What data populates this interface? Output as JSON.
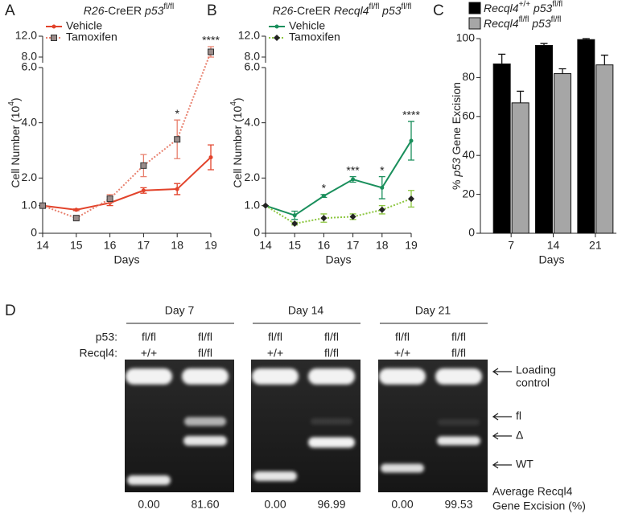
{
  "chart_data": [
    {
      "type": "line",
      "panel": "A",
      "title": [
        {
          "text": "R26",
          "style": "italic"
        },
        {
          "text": "-CreER "
        },
        {
          "text": "p53",
          "style": "italic"
        },
        {
          "text": "fl/fl",
          "style": "sup"
        }
      ],
      "x_label": "Days",
      "y_label": [
        {
          "text": "Cell Number (10"
        },
        {
          "text": "4",
          "style": "sup"
        },
        {
          "text": ")"
        }
      ],
      "x": [
        14,
        15,
        16,
        17,
        18,
        19
      ],
      "xlim": [
        14,
        19
      ],
      "xticks": [
        14,
        15,
        16,
        17,
        18,
        19
      ],
      "ylim": [
        0,
        12
      ],
      "y_break": 6,
      "yticks": [
        0,
        {
          "value": 1,
          "label": "1.0"
        },
        {
          "value": 2,
          "label": "2.0"
        },
        {
          "value": 4,
          "label": "4.0"
        },
        {
          "value": 6,
          "label": "6.0"
        },
        {
          "value": 8,
          "label": "8.0"
        },
        {
          "value": 12,
          "label": "12.0"
        }
      ],
      "series": [
        {
          "name": "Vehicle",
          "color": "#e2432b",
          "line_style": "solid",
          "marker": "circle",
          "values": [
            1.0,
            0.85,
            1.1,
            1.55,
            1.6,
            2.75
          ],
          "errors": [
            0,
            0.03,
            0.1,
            0.1,
            0.2,
            0.45
          ]
        },
        {
          "name": "Tamoxifen",
          "color": "#e8806e",
          "line_style": "dotted",
          "marker": "square",
          "values": [
            1.0,
            0.55,
            1.25,
            2.45,
            3.4,
            9.0
          ],
          "errors": [
            0,
            0.05,
            0.15,
            0.4,
            0.7,
            1.0
          ]
        }
      ],
      "annotations": [
        {
          "x": 18,
          "text": "*"
        },
        {
          "x": 19,
          "text": "****"
        }
      ],
      "legend": "upper left"
    },
    {
      "type": "line",
      "panel": "B",
      "title": [
        {
          "text": "R26",
          "style": "italic"
        },
        {
          "text": "-CreER "
        },
        {
          "text": "Recql4",
          "style": "italic"
        },
        {
          "text": "fl/fl",
          "style": "sup"
        },
        {
          "text": " p53",
          "style": "italic"
        },
        {
          "text": "fl/fl",
          "style": "sup"
        }
      ],
      "x_label": "Days",
      "y_label": [
        {
          "text": "Cell Number (10"
        },
        {
          "text": "4",
          "style": "sup"
        },
        {
          "text": ")"
        }
      ],
      "x": [
        14,
        15,
        16,
        17,
        18,
        19
      ],
      "xlim": [
        14,
        19
      ],
      "xticks": [
        14,
        15,
        16,
        17,
        18,
        19
      ],
      "ylim": [
        0,
        12
      ],
      "y_break": 6,
      "yticks": [
        0,
        {
          "value": 1,
          "label": "1.0"
        },
        {
          "value": 2,
          "label": "2.0"
        },
        {
          "value": 4,
          "label": "4.0"
        },
        {
          "value": 6,
          "label": "6.0"
        },
        {
          "value": 8,
          "label": "8.0"
        },
        {
          "value": 12,
          "label": "12.0"
        }
      ],
      "series": [
        {
          "name": "Vehicle",
          "color": "#1a8f5c",
          "line_style": "solid",
          "marker": "circle",
          "values": [
            1.0,
            0.65,
            1.35,
            1.95,
            1.65,
            3.35
          ],
          "errors": [
            0,
            0.15,
            0.05,
            0.1,
            0.4,
            0.7
          ]
        },
        {
          "name": "Tamoxifen",
          "color": "#8cc63f",
          "line_style": "dotted",
          "marker": "diamond",
          "values": [
            1.0,
            0.35,
            0.55,
            0.6,
            0.85,
            1.25
          ],
          "errors": [
            0,
            0.05,
            0.15,
            0.1,
            0.15,
            0.3
          ]
        }
      ],
      "annotations": [
        {
          "x": 16,
          "text": "*"
        },
        {
          "x": 17,
          "text": "***"
        },
        {
          "x": 18,
          "text": "*"
        },
        {
          "x": 19,
          "text": "****"
        }
      ],
      "legend": "upper left"
    },
    {
      "type": "bar",
      "panel": "C",
      "x_label": "Days",
      "y_label": [
        {
          "text": "% "
        },
        {
          "text": "p53",
          "style": "italic"
        },
        {
          "text": " Gene Excision"
        }
      ],
      "categories": [
        "7",
        "14",
        "21"
      ],
      "ylim": [
        0,
        100
      ],
      "yticks": [
        0,
        20,
        40,
        60,
        80,
        100
      ],
      "series": [
        {
          "name": [
            {
              "text": "Recql4",
              "style": "italic"
            },
            {
              "text": "+/+",
              "style": "sup"
            },
            {
              "text": " p53",
              "style": "italic"
            },
            {
              "text": "fl/fl",
              "style": "sup"
            }
          ],
          "color": "#000000",
          "values": [
            87,
            96.5,
            99.5
          ],
          "errors": [
            5,
            1,
            0.5
          ]
        },
        {
          "name": [
            {
              "text": "Recql4",
              "style": "italic"
            },
            {
              "text": "fl/fl",
              "style": "sup"
            },
            {
              "text": " p53",
              "style": "italic"
            },
            {
              "text": "fl/fl",
              "style": "sup"
            }
          ],
          "color": "#a6a6a6",
          "values": [
            67,
            82,
            86.5
          ],
          "errors": [
            6,
            2.5,
            5
          ]
        }
      ],
      "legend": "top"
    }
  ],
  "panel_d": {
    "label": "D",
    "row_labels": [
      "p53:",
      "Recql4:"
    ],
    "days": [
      {
        "label": "Day 7",
        "lanes": [
          {
            "p53": "fl/fl",
            "recql4": "+/+",
            "excision": "0.00"
          },
          {
            "p53": "fl/fl",
            "recql4": "fl/fl",
            "excision": "81.60"
          }
        ]
      },
      {
        "label": "Day 14",
        "lanes": [
          {
            "p53": "fl/fl",
            "recql4": "+/+",
            "excision": "0.00"
          },
          {
            "p53": "fl/fl",
            "recql4": "fl/fl",
            "excision": "96.99"
          }
        ]
      },
      {
        "label": "Day 21",
        "lanes": [
          {
            "p53": "fl/fl",
            "recql4": "+/+",
            "excision": "0.00"
          },
          {
            "p53": "fl/fl",
            "recql4": "fl/fl",
            "excision": "99.53"
          }
        ]
      }
    ],
    "band_labels": [
      "Loading",
      "control",
      "fl",
      "Δ",
      "WT"
    ],
    "footer": [
      "Average Recql4",
      "Gene Excision (%)"
    ]
  }
}
